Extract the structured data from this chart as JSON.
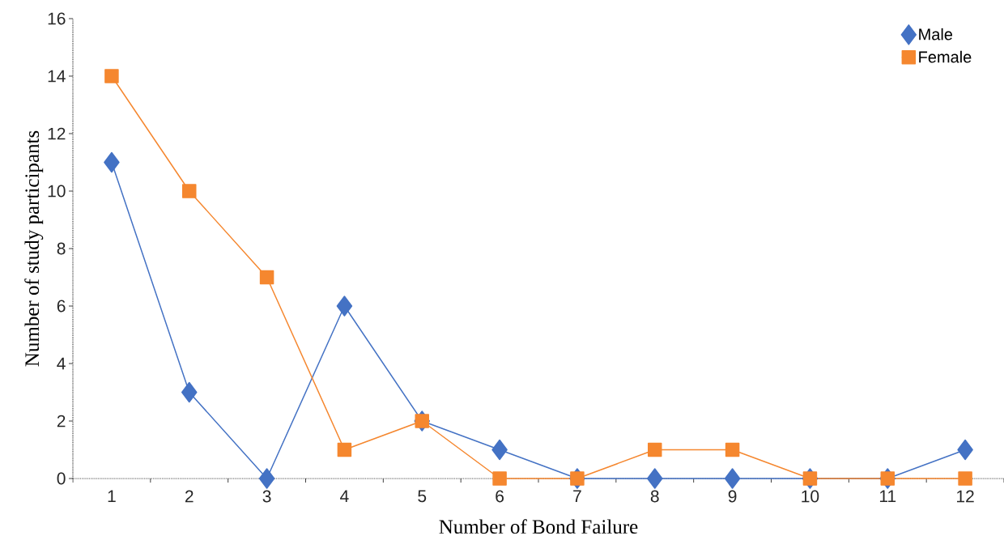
{
  "chart_data": {
    "type": "line",
    "xlabel": "Number of Bond Failure",
    "ylabel": "Number of study participants",
    "categories": [
      "1",
      "2",
      "3",
      "4",
      "5",
      "6",
      "7",
      "8",
      "9",
      "10",
      "11",
      "12"
    ],
    "series": [
      {
        "name": "Male",
        "color": "#4472c4",
        "marker": "diamond",
        "values": [
          11,
          3,
          0,
          6,
          2,
          1,
          0,
          0,
          0,
          0,
          0,
          1
        ]
      },
      {
        "name": "Female",
        "color": "#f5872f",
        "marker": "square",
        "values": [
          14,
          10,
          7,
          1,
          2,
          0,
          0,
          1,
          1,
          0,
          0,
          0
        ]
      }
    ],
    "ylim": [
      0,
      16
    ],
    "yticks": [
      0,
      2,
      4,
      6,
      8,
      10,
      12,
      14,
      16
    ],
    "grid": false,
    "legend": "top right",
    "line_style": "solid"
  }
}
